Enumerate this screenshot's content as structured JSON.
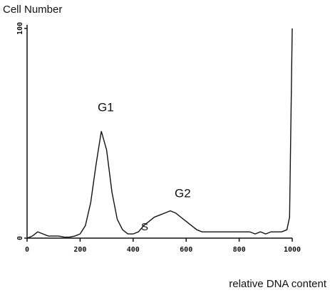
{
  "chart_data": {
    "type": "line",
    "title": "Cell Number",
    "x_label": "relative DNA content",
    "annotations": [
      "G1",
      "G2",
      "S"
    ],
    "x": [
      0,
      20,
      40,
      60,
      80,
      100,
      120,
      140,
      160,
      180,
      200,
      220,
      240,
      260,
      280,
      300,
      320,
      340,
      360,
      380,
      400,
      420,
      440,
      460,
      480,
      500,
      520,
      540,
      560,
      580,
      600,
      620,
      640,
      660,
      680,
      700,
      720,
      740,
      760,
      780,
      800,
      820,
      840,
      860,
      880,
      900,
      920,
      940,
      960,
      980,
      990,
      1000
    ],
    "series": [
      {
        "name": "Cell Number",
        "color": "#111111",
        "values": [
          0,
          1,
          3,
          2,
          1,
          1,
          1,
          0.5,
          0.5,
          1,
          2,
          6,
          17,
          35,
          51,
          42,
          22,
          9,
          4,
          2,
          2,
          3,
          6,
          8,
          10,
          11,
          12,
          13,
          12,
          10,
          8,
          6,
          4,
          3,
          3,
          3,
          3,
          3,
          3,
          3,
          3,
          3,
          3,
          2,
          3,
          2,
          3,
          3,
          3,
          4,
          10,
          100
        ]
      }
    ],
    "xlim": [
      0,
      1000
    ],
    "xticks": [
      0,
      200,
      400,
      600,
      800,
      1000
    ],
    "ylim": [
      0,
      100
    ],
    "yticks": [
      0,
      100
    ],
    "grid": false
  }
}
